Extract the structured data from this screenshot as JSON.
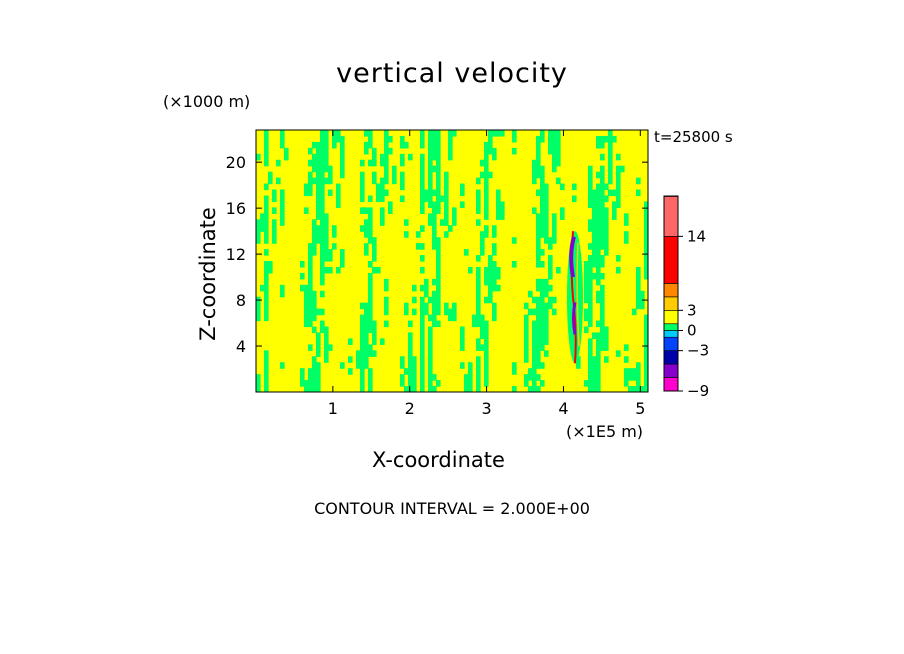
{
  "chart_data": {
    "type": "heatmap",
    "title": "vertical velocity",
    "xlabel": "X-coordinate",
    "ylabel": "Z-coordinate",
    "x_unit": "(×1E5 m)",
    "y_unit": "(×1000 m)",
    "time_label": "t=25800 s",
    "footer": "CONTOUR INTERVAL = 2.000E+00",
    "xlim": [
      0,
      5.1
    ],
    "ylim": [
      0,
      22.8
    ],
    "x_ticks": [
      1,
      2,
      3,
      4,
      5
    ],
    "x_tick_labels": [
      "1",
      "2",
      "3",
      "4",
      "5"
    ],
    "y_ticks": [
      4,
      8,
      12,
      16,
      20
    ],
    "y_tick_labels": [
      "4",
      "8",
      "12",
      "16",
      "20"
    ],
    "colorbar": {
      "levels": [
        -9,
        -7,
        -5,
        -3,
        -1,
        0,
        1,
        3,
        5,
        7,
        14,
        20
      ],
      "colors": [
        "#ff00cc",
        "#8800cc",
        "#0000aa",
        "#0044ff",
        "#00ccff",
        "#00ff66",
        "#ffff00",
        "#ffcc00",
        "#ff8800",
        "#ff0000",
        "#ff6666",
        "#ffaaaa"
      ],
      "tick_values": [
        -9,
        -3,
        0,
        3,
        14
      ],
      "tick_labels": [
        "−9",
        "−3",
        "0",
        "3",
        "14"
      ],
      "range": [
        -9,
        20
      ]
    },
    "field": {
      "dominant_values": [
        0,
        1
      ],
      "dominant_colors": [
        "#00ff66",
        "#ffff00"
      ],
      "strong_updraft_x": 4.15,
      "strong_updraft_z_range": [
        2.5,
        14
      ]
    }
  }
}
